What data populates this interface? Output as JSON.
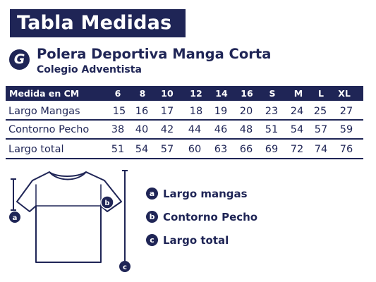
{
  "title": "Tabla Medidas",
  "logo_letter": "G",
  "product": "Polera Deportiva Manga Corta",
  "school": "Colegio Adventista",
  "table": {
    "header_label": "Medida en CM",
    "sizes": [
      "6",
      "8",
      "10",
      "12",
      "14",
      "16",
      "S",
      "M",
      "L",
      "XL"
    ],
    "rows": [
      {
        "label": "Largo Mangas",
        "values": [
          "15",
          "16",
          "17",
          "18",
          "19",
          "20",
          "23",
          "24",
          "25",
          "27"
        ]
      },
      {
        "label": "Contorno Pecho",
        "values": [
          "38",
          "40",
          "42",
          "44",
          "46",
          "48",
          "51",
          "54",
          "57",
          "59"
        ]
      },
      {
        "label": "Largo total",
        "values": [
          "51",
          "54",
          "57",
          "60",
          "63",
          "66",
          "69",
          "72",
          "74",
          "76"
        ]
      }
    ]
  },
  "diagram": {
    "markers": [
      "a",
      "b",
      "c"
    ]
  },
  "legend": [
    {
      "letter": "a",
      "text": "Largo mangas"
    },
    {
      "letter": "b",
      "text": "Contorno Pecho"
    },
    {
      "letter": "c",
      "text": "Largo total"
    }
  ],
  "colors": {
    "navy": "#1f2556",
    "white": "#ffffff"
  }
}
